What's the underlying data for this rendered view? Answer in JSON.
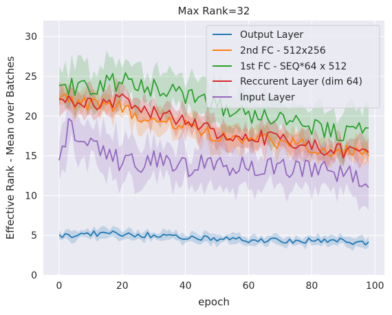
{
  "chart_data": {
    "type": "line",
    "title": "Max Rank=32",
    "xlabel": "epoch",
    "ylabel": "Effective Rank - Mean over Batches",
    "xlim": [
      -5,
      103
    ],
    "ylim": [
      0,
      32
    ],
    "xticks": [
      0,
      20,
      40,
      60,
      80,
      100
    ],
    "yticks": [
      0,
      5,
      10,
      15,
      20,
      25,
      30
    ],
    "grid": true,
    "legend_position": "top-right",
    "series": [
      {
        "name": "Output Layer",
        "color": "#1f77b4",
        "keypoints": [
          [
            0,
            4.9
          ],
          [
            10,
            5.2
          ],
          [
            20,
            5.2
          ],
          [
            30,
            5.0
          ],
          [
            40,
            4.6
          ],
          [
            50,
            4.6
          ],
          [
            60,
            4.4
          ],
          [
            70,
            4.3
          ],
          [
            80,
            4.3
          ],
          [
            90,
            4.3
          ],
          [
            98,
            4.0
          ]
        ],
        "band": 0.6,
        "noise": 0.35
      },
      {
        "name": "2nd FC - 512x256",
        "color": "#ff7f0e",
        "keypoints": [
          [
            0,
            22.0
          ],
          [
            10,
            21.5
          ],
          [
            20,
            21.0
          ],
          [
            30,
            19.5
          ],
          [
            40,
            19.0
          ],
          [
            50,
            17.5
          ],
          [
            60,
            17.0
          ],
          [
            70,
            16.8
          ],
          [
            80,
            16.2
          ],
          [
            90,
            15.6
          ],
          [
            98,
            15.2
          ]
        ],
        "band": 1.5,
        "noise": 0.9
      },
      {
        "name": "1st FC - SEQ*64 x 512",
        "color": "#2ca02c",
        "keypoints": [
          [
            0,
            24.0
          ],
          [
            10,
            23.5
          ],
          [
            20,
            24.5
          ],
          [
            30,
            23.5
          ],
          [
            40,
            22.5
          ],
          [
            50,
            21.5
          ],
          [
            60,
            20.0
          ],
          [
            70,
            19.5
          ],
          [
            80,
            18.5
          ],
          [
            90,
            18.0
          ],
          [
            98,
            18.5
          ]
        ],
        "band": 2.6,
        "noise": 1.2
      },
      {
        "name": "Reccurent Layer (dim 64)",
        "color": "#d62728",
        "keypoints": [
          [
            0,
            22.5
          ],
          [
            10,
            21.5
          ],
          [
            20,
            22.0
          ],
          [
            30,
            20.5
          ],
          [
            40,
            19.5
          ],
          [
            50,
            18.0
          ],
          [
            60,
            17.5
          ],
          [
            70,
            17.0
          ],
          [
            80,
            16.2
          ],
          [
            90,
            15.6
          ],
          [
            98,
            15.0
          ]
        ],
        "band": 1.6,
        "noise": 0.9
      },
      {
        "name": "Input Layer",
        "color": "#9467bd",
        "keypoints": [
          [
            0,
            15.5
          ],
          [
            3,
            18.3
          ],
          [
            10,
            17.0
          ],
          [
            20,
            14.0
          ],
          [
            30,
            14.5
          ],
          [
            40,
            13.5
          ],
          [
            50,
            14.0
          ],
          [
            60,
            13.5
          ],
          [
            70,
            13.3
          ],
          [
            80,
            13.0
          ],
          [
            90,
            13.0
          ],
          [
            98,
            12.2
          ]
        ],
        "band": 2.6,
        "noise": 1.4
      }
    ]
  }
}
